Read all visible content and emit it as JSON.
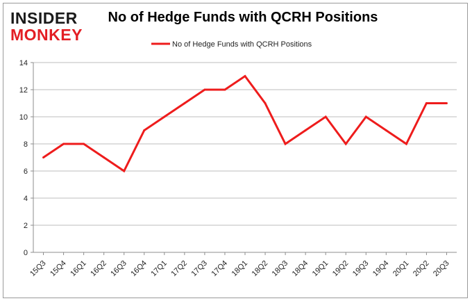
{
  "brand": {
    "line1": "INSIDER",
    "line2": "MONKEY"
  },
  "chart_data": {
    "type": "line",
    "title": "No of Hedge Funds with QCRH Positions",
    "xlabel": "",
    "ylabel": "",
    "categories": [
      "15Q3",
      "15Q4",
      "16Q1",
      "16Q2",
      "16Q3",
      "16Q4",
      "17Q1",
      "17Q2",
      "17Q3",
      "17Q4",
      "18Q1",
      "18Q2",
      "18Q3",
      "18Q4",
      "19Q1",
      "19Q2",
      "19Q3",
      "19Q4",
      "20Q1",
      "20Q2",
      "20Q3"
    ],
    "series": [
      {
        "name": "No of Hedge Funds with QCRH Positions",
        "values": [
          7,
          8,
          8,
          7,
          6,
          9,
          10,
          11,
          12,
          12,
          13,
          11,
          8,
          9,
          10,
          8,
          10,
          9,
          8,
          11,
          11
        ],
        "color": "#ee1c1c"
      }
    ],
    "ylim": [
      0,
      14
    ],
    "yticks": [
      0,
      2,
      4,
      6,
      8,
      10,
      12,
      14
    ],
    "grid": true,
    "legend": "top-center"
  }
}
